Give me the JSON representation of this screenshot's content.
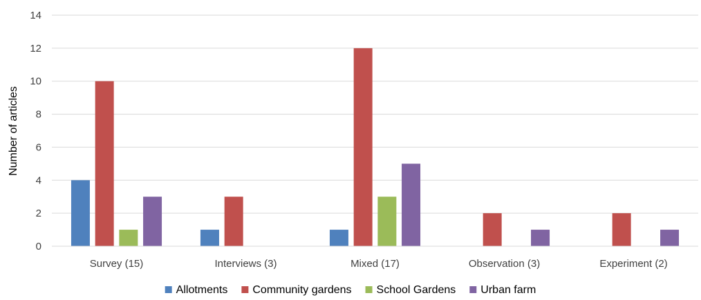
{
  "chart_data": {
    "type": "bar",
    "title": "",
    "xlabel": "",
    "ylabel": "Number of articles",
    "ylim": [
      0,
      14
    ],
    "yticks": [
      0,
      2,
      4,
      6,
      8,
      10,
      12,
      14
    ],
    "grid": true,
    "legend_position": "bottom",
    "categories": [
      "Survey (15)",
      "Interviews (3)",
      "Mixed (17)",
      "Observation (3)",
      "Experiment (2)"
    ],
    "series": [
      {
        "name": "Allotments",
        "color": "#4f81bd",
        "values": [
          4,
          1,
          1,
          0,
          0
        ]
      },
      {
        "name": "Community gardens",
        "color": "#c0504d",
        "values": [
          10,
          3,
          12,
          2,
          2
        ]
      },
      {
        "name": "School Gardens",
        "color": "#9bbb59",
        "values": [
          1,
          0,
          3,
          0,
          0
        ]
      },
      {
        "name": "Urban farm",
        "color": "#8064a2",
        "values": [
          3,
          0,
          5,
          1,
          1
        ]
      }
    ]
  }
}
